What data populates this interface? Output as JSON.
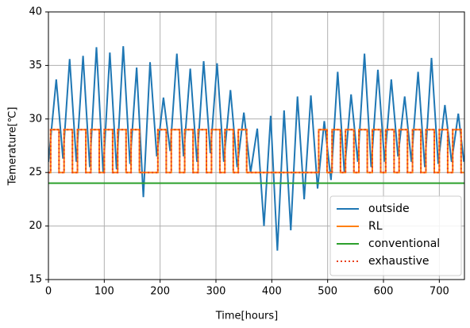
{
  "chart_data": {
    "type": "line",
    "xlabel": "Time[hours]",
    "ylabel": "Temerature[℃]",
    "xlim": [
      0,
      745
    ],
    "ylim": [
      15,
      40
    ],
    "xticks": [
      0,
      100,
      200,
      300,
      400,
      500,
      600,
      700
    ],
    "yticks": [
      15,
      20,
      25,
      30,
      35,
      40
    ],
    "grid": true,
    "legend": "lower right",
    "series": [
      {
        "name": "outside",
        "color": "#1f77b4",
        "linestyle": "solid",
        "x": [
          0,
          14,
          26,
          38,
          50,
          62,
          74,
          86,
          98,
          110,
          122,
          134,
          146,
          158,
          170,
          182,
          194,
          206,
          218,
          230,
          242,
          254,
          266,
          278,
          290,
          302,
          314,
          326,
          338,
          350,
          362,
          374,
          386,
          398,
          410,
          422,
          434,
          446,
          458,
          470,
          482,
          494,
          506,
          518,
          530,
          542,
          554,
          566,
          578,
          590,
          602,
          614,
          626,
          638,
          650,
          662,
          674,
          686,
          698,
          710,
          722,
          734,
          744
        ],
        "values": [
          26.0,
          33.7,
          26.3,
          35.6,
          26.0,
          35.9,
          25.5,
          36.7,
          25.0,
          36.2,
          25.3,
          36.8,
          25.8,
          34.8,
          22.7,
          35.3,
          26.5,
          32.0,
          27.0,
          36.1,
          26.5,
          34.7,
          26.0,
          35.4,
          26.8,
          35.2,
          26.0,
          32.7,
          25.5,
          30.6,
          25.0,
          29.1,
          20.0,
          30.3,
          17.7,
          30.8,
          19.6,
          32.1,
          22.5,
          32.2,
          23.5,
          29.8,
          24.3,
          34.4,
          25.0,
          32.3,
          26.0,
          36.1,
          25.5,
          34.6,
          26.0,
          33.7,
          26.5,
          32.1,
          26.0,
          34.4,
          25.5,
          35.7,
          25.8,
          31.3,
          26.0,
          30.5,
          26.0
        ]
      },
      {
        "name": "RL",
        "color": "#ff7f0e",
        "linestyle": "solid",
        "x": [
          0,
          4,
          4,
          19,
          19,
          28,
          28,
          43,
          43,
          52,
          52,
          67,
          67,
          76,
          76,
          91,
          91,
          100,
          100,
          115,
          115,
          124,
          124,
          139,
          139,
          148,
          148,
          163,
          163,
          196,
          196,
          211,
          211,
          220,
          220,
          235,
          235,
          244,
          244,
          259,
          259,
          268,
          268,
          283,
          283,
          292,
          292,
          307,
          307,
          316,
          316,
          331,
          331,
          340,
          340,
          355,
          355,
          484,
          484,
          499,
          499,
          508,
          508,
          523,
          523,
          532,
          532,
          547,
          547,
          556,
          556,
          571,
          571,
          580,
          580,
          595,
          595,
          604,
          604,
          619,
          619,
          628,
          628,
          643,
          643,
          652,
          652,
          667,
          667,
          676,
          676,
          691,
          691,
          700,
          700,
          715,
          715,
          724,
          724,
          739,
          739,
          744
        ],
        "values": [
          25,
          25,
          29,
          29,
          25,
          25,
          29,
          29,
          25,
          25,
          29,
          29,
          25,
          25,
          29,
          29,
          25,
          25,
          29,
          29,
          25,
          25,
          29,
          29,
          25,
          25,
          29,
          29,
          25,
          25,
          29,
          29,
          25,
          25,
          29,
          29,
          25,
          25,
          29,
          29,
          25,
          25,
          29,
          29,
          25,
          25,
          29,
          29,
          25,
          25,
          29,
          29,
          25,
          25,
          29,
          29,
          25,
          25,
          29,
          29,
          25,
          25,
          29,
          29,
          25,
          25,
          29,
          29,
          25,
          25,
          29,
          29,
          25,
          25,
          29,
          29,
          25,
          25,
          29,
          29,
          25,
          25,
          29,
          29,
          25,
          25,
          29,
          29,
          25,
          25,
          29,
          29,
          25,
          25,
          29,
          29,
          25,
          25,
          29,
          29,
          25,
          25
        ]
      },
      {
        "name": "conventional",
        "color": "#2ca02c",
        "linestyle": "solid",
        "x": [
          0,
          745
        ],
        "values": [
          24,
          24
        ]
      },
      {
        "name": "exhaustive",
        "color": "#e8401c",
        "linestyle": "dotted",
        "x": [
          0,
          4,
          4,
          19,
          19,
          28,
          28,
          43,
          43,
          52,
          52,
          67,
          67,
          76,
          76,
          91,
          91,
          100,
          100,
          115,
          115,
          124,
          124,
          139,
          139,
          148,
          148,
          163,
          163,
          196,
          196,
          211,
          211,
          220,
          220,
          235,
          235,
          244,
          244,
          259,
          259,
          268,
          268,
          283,
          283,
          292,
          292,
          307,
          307,
          316,
          316,
          331,
          331,
          340,
          340,
          355,
          355,
          484,
          484,
          499,
          499,
          508,
          508,
          523,
          523,
          532,
          532,
          547,
          547,
          556,
          556,
          571,
          571,
          580,
          580,
          595,
          595,
          604,
          604,
          619,
          619,
          628,
          628,
          643,
          643,
          652,
          652,
          667,
          667,
          676,
          676,
          691,
          691,
          700,
          700,
          715,
          715,
          724,
          724,
          739,
          739,
          744
        ],
        "values": [
          25,
          25,
          29,
          29,
          25,
          25,
          29,
          29,
          25,
          25,
          29,
          29,
          25,
          25,
          29,
          29,
          25,
          25,
          29,
          29,
          25,
          25,
          29,
          29,
          25,
          25,
          29,
          29,
          25,
          25,
          29,
          29,
          25,
          25,
          29,
          29,
          25,
          25,
          29,
          29,
          25,
          25,
          29,
          29,
          25,
          25,
          29,
          29,
          25,
          25,
          29,
          29,
          25,
          25,
          29,
          29,
          25,
          25,
          29,
          29,
          25,
          25,
          29,
          29,
          25,
          25,
          29,
          29,
          25,
          25,
          29,
          29,
          25,
          25,
          29,
          29,
          25,
          25,
          29,
          29,
          25,
          25,
          29,
          29,
          25,
          25,
          29,
          29,
          25,
          25,
          29,
          29,
          25,
          25,
          29,
          29,
          25,
          25,
          29,
          29,
          25,
          25
        ]
      }
    ]
  }
}
